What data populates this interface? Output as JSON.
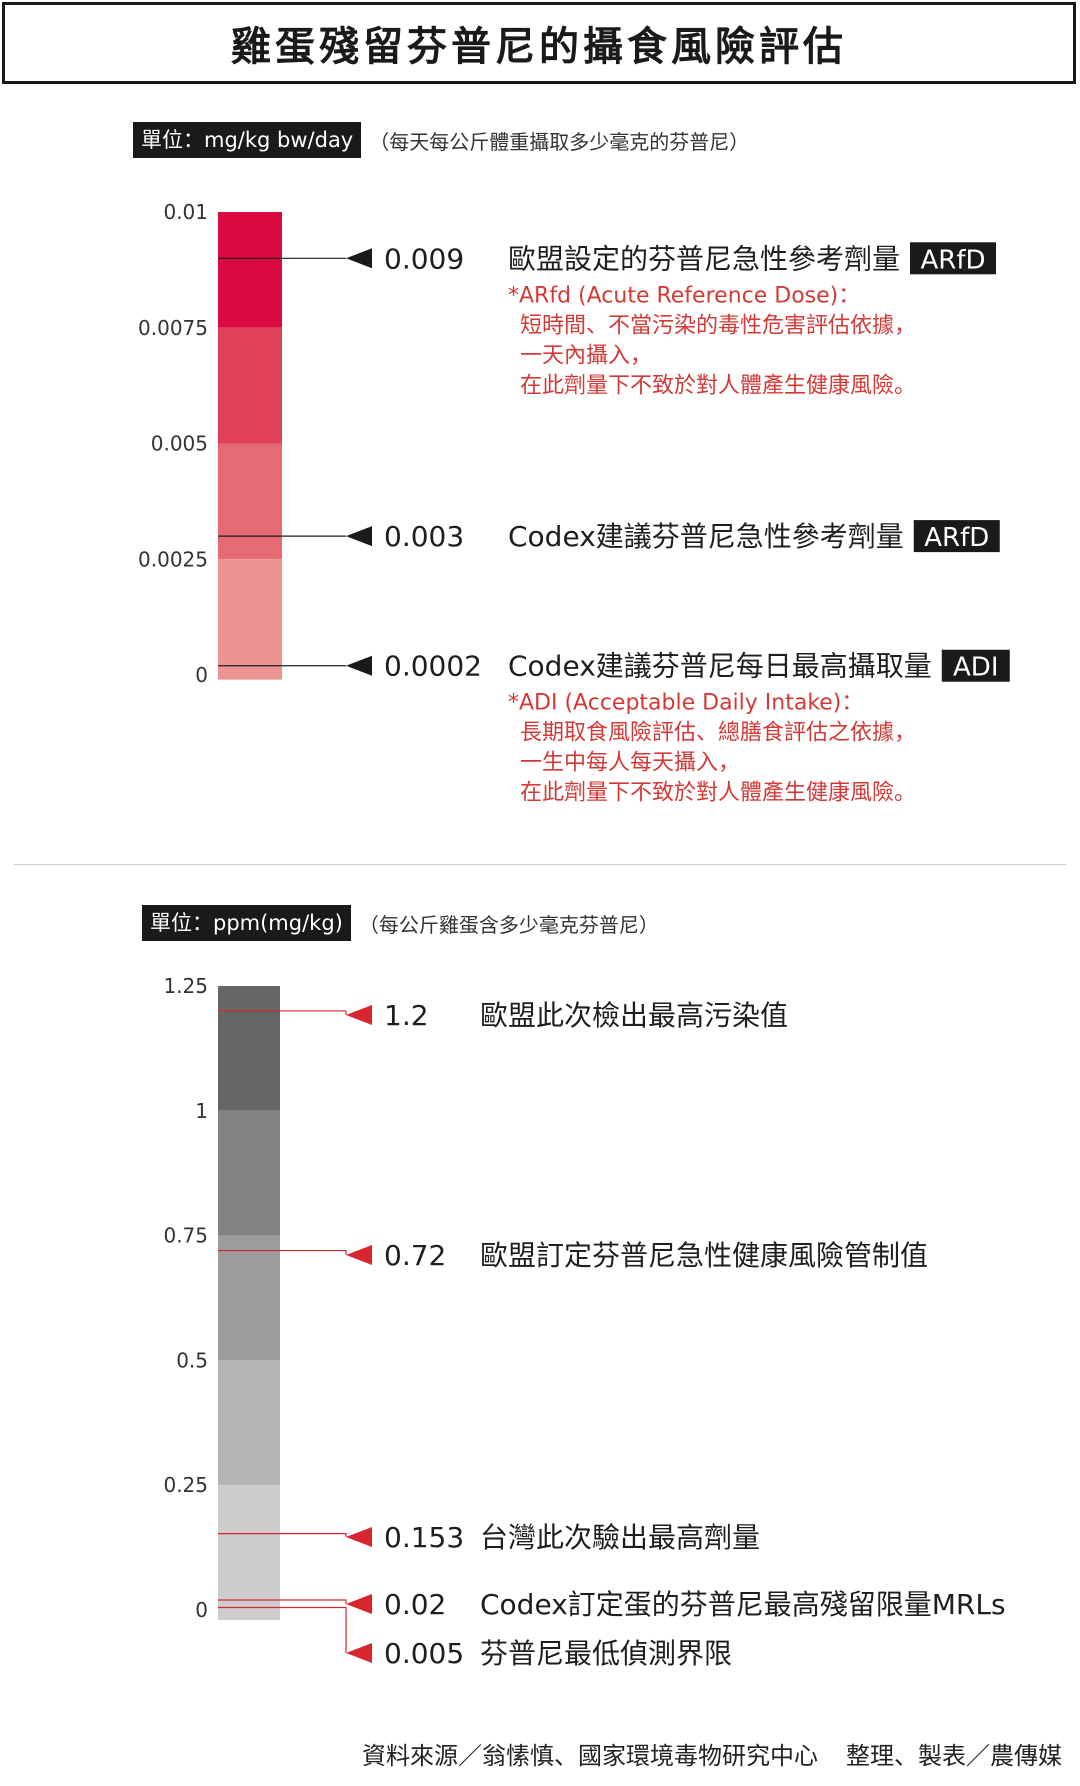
{
  "title": "雞蛋殘留芬普尼的攝食風險評估",
  "section1": {
    "unit_label": "單位：mg/kg bw/day",
    "unit_note": "（每天每公斤體重攝取多少毫克的芬普尼）"
  },
  "section2": {
    "unit_label": "單位：ppm(mg/kg)",
    "unit_note": "（每公斤雞蛋含多少毫克芬普尼）"
  },
  "footer": {
    "source": "資料來源／翁愫慎、國家環境毒物研究中心",
    "credit": "整理、製表／農傳媒"
  },
  "colors": {
    "accent_red": "#d40f3e",
    "note_red": "#d33a36",
    "dark": "#1a1a1a"
  },
  "chart_data": [
    {
      "type": "bar",
      "ylim": [
        0,
        0.01
      ],
      "tick_labels": [
        "0.01",
        "0.0075",
        "0.005",
        "0.0025",
        "0"
      ],
      "tick_values": [
        0.01,
        0.0075,
        0.005,
        0.0025,
        0
      ],
      "bands": [
        {
          "from": 0.0075,
          "to": 0.01,
          "color": "#d80a3f"
        },
        {
          "from": 0.005,
          "to": 0.0075,
          "color": "#e0415a"
        },
        {
          "from": 0.0025,
          "to": 0.005,
          "color": "#e56a73"
        },
        {
          "from": -0.0001,
          "to": 0.0025,
          "color": "#eb9491"
        }
      ],
      "annotations": [
        {
          "value": 0.009,
          "value_label": "0.009",
          "text": "歐盟設定的芬普尼急性參考劑量",
          "badge": "ARfD",
          "notes": [
            "*ARfd (Acute Reference Dose)：",
            "短時間、不當污染的毒性危害評估依據，",
            "一天內攝入，",
            "在此劑量下不致於對人體產生健康風險。"
          ]
        },
        {
          "value": 0.003,
          "value_label": "0.003",
          "text": "Codex建議芬普尼急性參考劑量",
          "badge": "ARfD",
          "notes": []
        },
        {
          "value": 0.0002,
          "value_label": "0.0002",
          "text": "Codex建議芬普尼每日最高攝取量",
          "badge": "ADI",
          "notes": [
            "*ADI (Acceptable Daily Intake)：",
            "長期取食風險評估、總膳食評估之依據，",
            "一生中每人每天攝入，",
            "在此劑量下不致於對人體產生健康風險。"
          ]
        }
      ]
    },
    {
      "type": "bar",
      "ylim": [
        0,
        1.25
      ],
      "tick_labels": [
        "1.25",
        "1",
        "0.75",
        "0.5",
        "0.25",
        "0"
      ],
      "tick_values": [
        1.25,
        1,
        0.75,
        0.5,
        0.25,
        0
      ],
      "bands": [
        {
          "from": 1.0,
          "to": 1.25,
          "color": "#666666"
        },
        {
          "from": 0.75,
          "to": 1.0,
          "color": "#828282"
        },
        {
          "from": 0.5,
          "to": 0.75,
          "color": "#9c9c9c"
        },
        {
          "from": 0.25,
          "to": 0.5,
          "color": "#b4b4b4"
        },
        {
          "from": -0.02,
          "to": 0.25,
          "color": "#cdcdcd"
        }
      ],
      "annotations": [
        {
          "value": 1.2,
          "value_label": "1.2",
          "text": "歐盟此次檢出最高污染值"
        },
        {
          "value": 0.72,
          "value_label": "0.72",
          "text": "歐盟訂定芬普尼急性健康風險管制值"
        },
        {
          "value": 0.153,
          "value_label": "0.153",
          "text": "台灣此次驗出最高劑量"
        },
        {
          "value": 0.02,
          "value_label": "0.02",
          "text": "Codex訂定蛋的芬普尼最高殘留限量MRLs"
        },
        {
          "value": 0.005,
          "value_label": "0.005",
          "text": "芬普尼最低偵測界限"
        }
      ]
    }
  ]
}
